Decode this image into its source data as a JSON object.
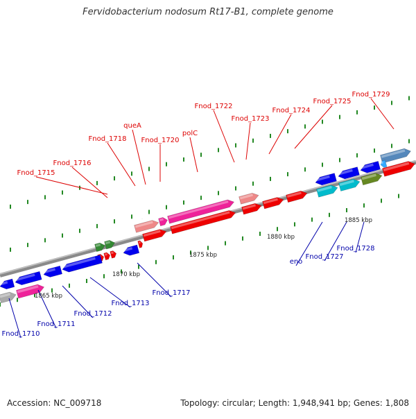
{
  "title": "Fervidobacterium nodosum Rt17-B1, complete genome",
  "footer": {
    "accession": "Accession: NC_009718",
    "summary": "Topology: circular; Length: 1,948,941 bp; Genes: 1,808"
  },
  "scale_labels": [
    "1865 kbp",
    "1870 kbp",
    "1875 kbp",
    "1880 kbp",
    "1885 kbp"
  ],
  "genes_top": [
    "Fnod_1715",
    "Fnod_1716",
    "Fnod_1718",
    "queA",
    "Fnod_1720",
    "polC",
    "Fnod_1722",
    "Fnod_1723",
    "Fnod_1724",
    "Fnod_1725",
    "Fnod_1729"
  ],
  "genes_bottom": [
    "Fnod_1710",
    "Fnod_1711",
    "Fnod_1712",
    "Fnod_1713",
    "Fnod_1717",
    "eno",
    "Fnod_1727",
    "Fnod_1728"
  ],
  "colors": {
    "label_top": "#dd0000",
    "label_bottom": "#0000aa",
    "red": "#ee0000",
    "pink": "#ee2299",
    "salmon": "#ee8888",
    "blue": "#0000ee",
    "cyan": "#00bbcc",
    "olive": "#668822",
    "green": "#338833",
    "steel": "#5588bb",
    "gray": "#aaaaaa"
  }
}
